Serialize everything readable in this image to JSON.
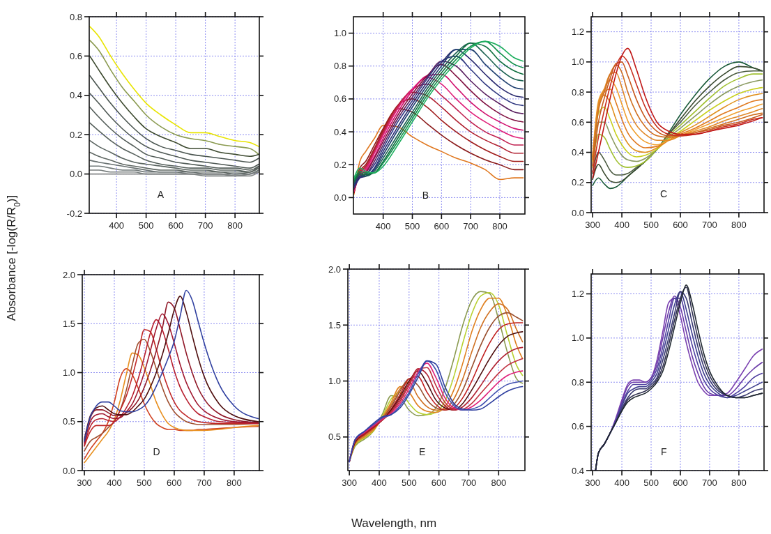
{
  "chart_data": [
    {
      "type": "line",
      "ylabel": "Absorbance [-log(R/R$_{0}$)]",
      "annotations": [
        "A"
      ],
      "xlim": [
        308,
        882
      ],
      "xticks": [
        400,
        500,
        600,
        700,
        800
      ],
      "ylim": [
        -0.2,
        0.8
      ],
      "yticks": [
        -0.2,
        {
          "value": 0,
          "label": "0.0"
        },
        0.2,
        0.4,
        0.6,
        0.8
      ],
      "grid": true,
      "x": [
        310,
        340,
        380,
        420,
        460,
        500,
        550,
        600,
        650,
        700,
        750,
        800,
        850,
        880
      ],
      "series": [
        {
          "color": "#e8e400",
          "values": [
            0.75,
            0.7,
            0.6,
            0.51,
            0.43,
            0.36,
            0.3,
            0.25,
            0.21,
            0.21,
            0.19,
            0.17,
            0.16,
            0.14
          ]
        },
        {
          "color": "#8a9a50",
          "values": [
            0.68,
            0.63,
            0.53,
            0.44,
            0.37,
            0.3,
            0.24,
            0.2,
            0.18,
            0.17,
            0.15,
            0.14,
            0.13,
            0.1
          ]
        },
        {
          "color": "#3d4a30",
          "values": [
            0.6,
            0.53,
            0.44,
            0.36,
            0.29,
            0.23,
            0.19,
            0.16,
            0.13,
            0.13,
            0.11,
            0.1,
            0.09,
            0.1
          ]
        },
        {
          "color": "#4a5550",
          "values": [
            0.5,
            0.44,
            0.36,
            0.29,
            0.23,
            0.18,
            0.14,
            0.12,
            0.1,
            0.09,
            0.08,
            0.07,
            0.06,
            0.08
          ]
        },
        {
          "color": "#4e5854",
          "values": [
            0.41,
            0.36,
            0.29,
            0.23,
            0.18,
            0.14,
            0.11,
            0.09,
            0.07,
            0.06,
            0.05,
            0.04,
            0.03,
            0.05
          ]
        },
        {
          "color": "#525c58",
          "values": [
            0.34,
            0.29,
            0.23,
            0.18,
            0.14,
            0.1,
            0.08,
            0.06,
            0.05,
            0.04,
            0.03,
            0.03,
            0.02,
            0.04
          ]
        },
        {
          "color": "#56605c",
          "values": [
            0.26,
            0.22,
            0.17,
            0.13,
            0.1,
            0.07,
            0.05,
            0.04,
            0.03,
            0.03,
            0.02,
            0.02,
            0.01,
            0.04
          ]
        },
        {
          "color": "#5a6460",
          "values": [
            0.17,
            0.14,
            0.11,
            0.08,
            0.06,
            0.05,
            0.04,
            0.03,
            0.02,
            0.02,
            0.01,
            0.01,
            0.01,
            0.03
          ]
        },
        {
          "color": "#606864",
          "values": [
            0.11,
            0.09,
            0.07,
            0.05,
            0.04,
            0.03,
            0.02,
            0.02,
            0.01,
            0.01,
            0.01,
            0.0,
            0.01,
            0.03
          ]
        },
        {
          "color": "#687070",
          "values": [
            0.07,
            0.06,
            0.05,
            0.04,
            0.03,
            0.02,
            0.01,
            0.01,
            0.01,
            0.0,
            0.0,
            0.0,
            0.0,
            0.02
          ]
        },
        {
          "color": "#707878",
          "values": [
            0.04,
            0.04,
            0.03,
            0.02,
            0.02,
            0.01,
            0.01,
            0.01,
            0.0,
            0.0,
            0.0,
            -0.01,
            0.0,
            0.02
          ]
        },
        {
          "color": "#787e7e",
          "values": [
            0.02,
            0.02,
            0.01,
            0.01,
            0.01,
            0.0,
            0.0,
            0.0,
            0.0,
            -0.01,
            -0.01,
            -0.01,
            0.0,
            0.01
          ]
        },
        {
          "color": "#858888",
          "values": [
            0.0,
            0.0,
            0.0,
            0.0,
            0.0,
            0.0,
            0.0,
            0.0,
            0.0,
            0.0,
            0.0,
            -0.01,
            -0.01,
            0.01
          ]
        }
      ]
    },
    {
      "type": "line",
      "annotations": [
        "B"
      ],
      "xlim": [
        298,
        886
      ],
      "xticks": [
        400,
        500,
        600,
        700,
        800
      ],
      "ylim": [
        -0.1,
        1.1
      ],
      "yticks": [
        {
          "value": 0,
          "label": "0.0"
        },
        0.2,
        0.4,
        0.6,
        0.8,
        {
          "value": 1,
          "label": "1.0"
        }
      ],
      "grid": true,
      "x": [
        300,
        320,
        340,
        370,
        400,
        450,
        500,
        550,
        600,
        650,
        700,
        750,
        800,
        850,
        880
      ],
      "series": [
        {
          "color": "#e07820",
          "values": [
            0.02,
            0.22,
            0.28,
            0.36,
            0.44,
            0.43,
            0.37,
            0.32,
            0.28,
            0.24,
            0.21,
            0.17,
            0.11,
            0.12,
            0.12
          ]
        },
        {
          "color": "#8b1a1a",
          "values": [
            0.03,
            0.18,
            0.22,
            0.32,
            0.42,
            0.54,
            0.52,
            0.45,
            0.38,
            0.32,
            0.27,
            0.23,
            0.2,
            0.17,
            0.17
          ]
        },
        {
          "color": "#a01c1c",
          "values": [
            0.03,
            0.16,
            0.2,
            0.3,
            0.41,
            0.56,
            0.6,
            0.55,
            0.47,
            0.4,
            0.34,
            0.29,
            0.25,
            0.22,
            0.22
          ]
        },
        {
          "color": "#b02030",
          "values": [
            0.03,
            0.15,
            0.19,
            0.29,
            0.4,
            0.56,
            0.64,
            0.62,
            0.55,
            0.47,
            0.4,
            0.35,
            0.31,
            0.27,
            0.27
          ]
        },
        {
          "color": "#c02050",
          "values": [
            0.04,
            0.15,
            0.18,
            0.28,
            0.39,
            0.55,
            0.66,
            0.69,
            0.62,
            0.54,
            0.46,
            0.4,
            0.36,
            0.32,
            0.32
          ]
        },
        {
          "color": "#e0207a",
          "values": [
            0.04,
            0.14,
            0.17,
            0.27,
            0.38,
            0.54,
            0.66,
            0.73,
            0.69,
            0.6,
            0.52,
            0.46,
            0.41,
            0.37,
            0.36
          ]
        },
        {
          "color": "#d0106e",
          "values": [
            0.05,
            0.14,
            0.16,
            0.25,
            0.36,
            0.52,
            0.65,
            0.74,
            0.75,
            0.67,
            0.58,
            0.51,
            0.46,
            0.42,
            0.41
          ]
        },
        {
          "color": "#801040",
          "values": [
            0.05,
            0.13,
            0.15,
            0.24,
            0.34,
            0.5,
            0.63,
            0.74,
            0.81,
            0.74,
            0.65,
            0.57,
            0.51,
            0.47,
            0.46
          ]
        },
        {
          "color": "#5a2060",
          "values": [
            0.06,
            0.13,
            0.14,
            0.22,
            0.32,
            0.48,
            0.61,
            0.73,
            0.83,
            0.8,
            0.71,
            0.63,
            0.57,
            0.52,
            0.51
          ]
        },
        {
          "color": "#303880",
          "values": [
            0.06,
            0.12,
            0.14,
            0.2,
            0.3,
            0.46,
            0.59,
            0.72,
            0.83,
            0.86,
            0.78,
            0.69,
            0.62,
            0.57,
            0.56
          ]
        },
        {
          "color": "#2a2a70",
          "values": [
            0.07,
            0.12,
            0.13,
            0.18,
            0.28,
            0.43,
            0.57,
            0.7,
            0.82,
            0.9,
            0.84,
            0.75,
            0.67,
            0.62,
            0.61
          ]
        },
        {
          "color": "#204070",
          "values": [
            0.08,
            0.13,
            0.13,
            0.17,
            0.26,
            0.41,
            0.55,
            0.68,
            0.8,
            0.9,
            0.9,
            0.81,
            0.73,
            0.67,
            0.66
          ]
        },
        {
          "color": "#1a6050",
          "values": [
            0.09,
            0.14,
            0.13,
            0.16,
            0.24,
            0.38,
            0.52,
            0.66,
            0.78,
            0.88,
            0.94,
            0.87,
            0.78,
            0.72,
            0.71
          ]
        },
        {
          "color": "#107040",
          "values": [
            0.1,
            0.15,
            0.14,
            0.15,
            0.22,
            0.36,
            0.5,
            0.64,
            0.76,
            0.86,
            0.94,
            0.92,
            0.83,
            0.77,
            0.75
          ]
        },
        {
          "color": "#10904a",
          "values": [
            0.11,
            0.16,
            0.15,
            0.15,
            0.21,
            0.34,
            0.48,
            0.62,
            0.74,
            0.84,
            0.92,
            0.95,
            0.88,
            0.81,
            0.79
          ]
        },
        {
          "color": "#20b060",
          "values": [
            0.12,
            0.18,
            0.16,
            0.15,
            0.19,
            0.32,
            0.46,
            0.6,
            0.72,
            0.82,
            0.91,
            0.95,
            0.92,
            0.85,
            0.83
          ]
        }
      ]
    },
    {
      "type": "line",
      "annotations": [
        "C"
      ],
      "xlim": [
        295,
        886
      ],
      "xticks": [
        300,
        400,
        500,
        600,
        700,
        800
      ],
      "ylim": [
        0.0,
        1.3
      ],
      "yticks": [
        {
          "value": 0,
          "label": "0.0"
        },
        0.2,
        0.4,
        0.6,
        0.8,
        {
          "value": 1,
          "label": "1.0"
        },
        1.2
      ],
      "grid": true,
      "x": [
        300,
        320,
        340,
        360,
        380,
        400,
        420,
        450,
        480,
        520,
        560,
        600,
        650,
        700,
        750,
        800,
        850,
        880
      ],
      "series": [
        {
          "color": "#1a5a3a",
          "values": [
            0.18,
            0.23,
            0.19,
            0.16,
            0.17,
            0.2,
            0.24,
            0.29,
            0.34,
            0.42,
            0.53,
            0.65,
            0.78,
            0.89,
            0.97,
            1.0,
            0.96,
            0.94
          ]
        },
        {
          "color": "#3a4a30",
          "values": [
            0.22,
            0.32,
            0.26,
            0.21,
            0.2,
            0.21,
            0.24,
            0.29,
            0.34,
            0.42,
            0.52,
            0.62,
            0.74,
            0.84,
            0.92,
            0.97,
            0.96,
            0.94
          ]
        },
        {
          "color": "#4a5a40",
          "values": [
            0.26,
            0.4,
            0.35,
            0.28,
            0.25,
            0.25,
            0.26,
            0.3,
            0.34,
            0.42,
            0.52,
            0.6,
            0.71,
            0.8,
            0.88,
            0.93,
            0.94,
            0.94
          ]
        },
        {
          "color": "#a0c030",
          "values": [
            0.3,
            0.52,
            0.5,
            0.42,
            0.35,
            0.31,
            0.3,
            0.31,
            0.34,
            0.42,
            0.51,
            0.58,
            0.67,
            0.76,
            0.84,
            0.89,
            0.92,
            0.92
          ]
        },
        {
          "color": "#8a9a60",
          "values": [
            0.32,
            0.6,
            0.6,
            0.52,
            0.44,
            0.38,
            0.35,
            0.34,
            0.36,
            0.42,
            0.5,
            0.56,
            0.64,
            0.72,
            0.79,
            0.84,
            0.87,
            0.88
          ]
        },
        {
          "color": "#c8d020",
          "values": [
            0.34,
            0.66,
            0.7,
            0.62,
            0.52,
            0.45,
            0.4,
            0.37,
            0.38,
            0.42,
            0.49,
            0.54,
            0.61,
            0.68,
            0.74,
            0.79,
            0.82,
            0.83
          ]
        },
        {
          "color": "#e09020",
          "values": [
            0.36,
            0.7,
            0.78,
            0.73,
            0.62,
            0.53,
            0.46,
            0.41,
            0.4,
            0.43,
            0.48,
            0.53,
            0.58,
            0.64,
            0.7,
            0.75,
            0.78,
            0.79
          ]
        },
        {
          "color": "#e07a20",
          "values": [
            0.37,
            0.72,
            0.8,
            0.82,
            0.73,
            0.62,
            0.53,
            0.46,
            0.43,
            0.44,
            0.48,
            0.52,
            0.56,
            0.61,
            0.66,
            0.7,
            0.74,
            0.75
          ]
        },
        {
          "color": "#f0a030",
          "values": [
            0.38,
            0.74,
            0.82,
            0.88,
            0.83,
            0.72,
            0.61,
            0.52,
            0.47,
            0.45,
            0.48,
            0.51,
            0.55,
            0.59,
            0.63,
            0.67,
            0.7,
            0.72
          ]
        },
        {
          "color": "#e08828",
          "values": [
            0.37,
            0.72,
            0.82,
            0.92,
            0.93,
            0.83,
            0.7,
            0.58,
            0.52,
            0.48,
            0.48,
            0.51,
            0.54,
            0.57,
            0.61,
            0.64,
            0.67,
            0.69
          ]
        },
        {
          "color": "#d07020",
          "values": [
            0.35,
            0.68,
            0.8,
            0.92,
            0.98,
            0.93,
            0.8,
            0.66,
            0.57,
            0.51,
            0.5,
            0.51,
            0.53,
            0.56,
            0.59,
            0.62,
            0.65,
            0.66
          ]
        },
        {
          "color": "#c85a20",
          "values": [
            0.31,
            0.6,
            0.76,
            0.89,
            0.99,
            1.0,
            0.91,
            0.75,
            0.63,
            0.54,
            0.51,
            0.51,
            0.53,
            0.55,
            0.58,
            0.6,
            0.63,
            0.65
          ]
        },
        {
          "color": "#c83020",
          "values": [
            0.27,
            0.5,
            0.68,
            0.84,
            0.97,
            1.04,
            1.0,
            0.85,
            0.7,
            0.57,
            0.52,
            0.51,
            0.52,
            0.54,
            0.57,
            0.59,
            0.62,
            0.63
          ]
        },
        {
          "color": "#c01818",
          "values": [
            0.23,
            0.4,
            0.58,
            0.76,
            0.92,
            1.04,
            1.09,
            0.95,
            0.77,
            0.6,
            0.54,
            0.52,
            0.52,
            0.54,
            0.56,
            0.58,
            0.61,
            0.63
          ]
        }
      ]
    },
    {
      "type": "line",
      "annotations": [
        "D"
      ],
      "xlim": [
        293,
        884
      ],
      "xticks": [
        300,
        400,
        500,
        600,
        700,
        800
      ],
      "ylim": [
        0.0,
        2.0
      ],
      "yticks": [
        {
          "value": 0,
          "label": "0.0"
        },
        0.5,
        {
          "value": 1,
          "label": "1.0"
        },
        1.5,
        {
          "value": 2,
          "label": "2.0"
        }
      ],
      "grid": true,
      "x": [
        300,
        320,
        340,
        360,
        380,
        400,
        420,
        440,
        460,
        480,
        500,
        520,
        540,
        560,
        580,
        600,
        620,
        640,
        660,
        680,
        700,
        750,
        800,
        880
      ],
      "series": [
        {
          "color": "#d04020",
          "values": [
            0.12,
            0.22,
            0.3,
            0.38,
            0.5,
            0.7,
            0.95,
            1.04,
            0.98,
            0.84,
            0.68,
            0.56,
            0.48,
            0.44,
            0.42,
            0.42,
            0.41,
            0.41,
            0.41,
            0.42,
            0.42,
            0.43,
            0.44,
            0.45
          ]
        },
        {
          "color": "#e89020",
          "values": [
            0.08,
            0.16,
            0.24,
            0.32,
            0.4,
            0.52,
            0.72,
            0.98,
            1.2,
            1.18,
            1.05,
            0.88,
            0.7,
            0.57,
            0.48,
            0.44,
            0.42,
            0.41,
            0.41,
            0.41,
            0.41,
            0.42,
            0.44,
            0.46
          ]
        },
        {
          "color": "#a05030",
          "values": [
            0.2,
            0.3,
            0.34,
            0.38,
            0.44,
            0.5,
            0.62,
            0.82,
            1.08,
            1.3,
            1.34,
            1.22,
            1.04,
            0.85,
            0.7,
            0.6,
            0.54,
            0.5,
            0.48,
            0.47,
            0.47,
            0.47,
            0.47,
            0.48
          ]
        },
        {
          "color": "#c02828",
          "values": [
            0.25,
            0.4,
            0.46,
            0.46,
            0.46,
            0.5,
            0.62,
            0.76,
            0.96,
            1.2,
            1.44,
            1.42,
            1.24,
            1.02,
            0.84,
            0.7,
            0.61,
            0.56,
            0.52,
            0.5,
            0.49,
            0.48,
            0.48,
            0.48
          ]
        },
        {
          "color": "#b82030",
          "values": [
            0.26,
            0.45,
            0.52,
            0.53,
            0.51,
            0.5,
            0.55,
            0.64,
            0.76,
            0.94,
            1.16,
            1.4,
            1.54,
            1.44,
            1.24,
            1.02,
            0.85,
            0.73,
            0.64,
            0.58,
            0.55,
            0.5,
            0.49,
            0.48
          ]
        },
        {
          "color": "#a01830",
          "values": [
            0.28,
            0.5,
            0.57,
            0.58,
            0.55,
            0.53,
            0.54,
            0.6,
            0.68,
            0.82,
            1.0,
            1.22,
            1.45,
            1.6,
            1.5,
            1.3,
            1.08,
            0.9,
            0.77,
            0.67,
            0.61,
            0.53,
            0.5,
            0.49
          ]
        },
        {
          "color": "#901828",
          "values": [
            0.3,
            0.54,
            0.62,
            0.62,
            0.59,
            0.56,
            0.56,
            0.59,
            0.64,
            0.72,
            0.85,
            1.02,
            1.22,
            1.45,
            1.72,
            1.66,
            1.44,
            1.2,
            1.0,
            0.84,
            0.73,
            0.58,
            0.52,
            0.49
          ]
        },
        {
          "color": "#501010",
          "values": [
            0.32,
            0.56,
            0.64,
            0.66,
            0.62,
            0.58,
            0.57,
            0.57,
            0.6,
            0.66,
            0.73,
            0.85,
            1.0,
            1.18,
            1.4,
            1.64,
            1.78,
            1.62,
            1.38,
            1.15,
            0.96,
            0.68,
            0.56,
            0.5
          ]
        },
        {
          "color": "#3040a0",
          "values": [
            0.3,
            0.55,
            0.66,
            0.7,
            0.7,
            0.66,
            0.61,
            0.6,
            0.6,
            0.62,
            0.66,
            0.74,
            0.86,
            1.0,
            1.15,
            1.32,
            1.58,
            1.84,
            1.74,
            1.52,
            1.3,
            0.88,
            0.66,
            0.53
          ]
        }
      ]
    },
    {
      "type": "line",
      "xlabel": "Wavelength, nm",
      "annotations": [
        "E"
      ],
      "xlim": [
        295,
        888
      ],
      "xticks": [
        300,
        400,
        500,
        600,
        700,
        800
      ],
      "ylim": [
        0.2,
        2.0
      ],
      "yticks": [
        0.5,
        {
          "value": 1,
          "label": "1.0"
        },
        1.5,
        {
          "value": 2,
          "label": "2.0"
        }
      ],
      "grid": true,
      "x": [
        300,
        320,
        350,
        380,
        410,
        440,
        470,
        500,
        530,
        560,
        590,
        620,
        650,
        680,
        710,
        740,
        770,
        800,
        830,
        860,
        880
      ],
      "series": [
        {
          "color": "#8a9a50",
          "values": [
            0.28,
            0.42,
            0.48,
            0.55,
            0.7,
            0.87,
            0.85,
            0.74,
            0.69,
            0.7,
            0.76,
            0.93,
            1.2,
            1.5,
            1.72,
            1.8,
            1.78,
            1.55,
            1.25,
            1.02,
            0.98
          ]
        },
        {
          "color": "#b8d030",
          "values": [
            0.28,
            0.43,
            0.49,
            0.55,
            0.68,
            0.84,
            0.9,
            0.8,
            0.72,
            0.7,
            0.72,
            0.82,
            1.04,
            1.34,
            1.6,
            1.76,
            1.79,
            1.68,
            1.4,
            1.14,
            1.05
          ]
        },
        {
          "color": "#e08020",
          "values": [
            0.28,
            0.44,
            0.5,
            0.56,
            0.67,
            0.81,
            0.95,
            0.9,
            0.78,
            0.73,
            0.72,
            0.77,
            0.92,
            1.16,
            1.44,
            1.64,
            1.74,
            1.74,
            1.58,
            1.32,
            1.2
          ]
        },
        {
          "color": "#d07020",
          "values": [
            0.28,
            0.45,
            0.51,
            0.57,
            0.66,
            0.79,
            0.93,
            0.99,
            0.86,
            0.77,
            0.74,
            0.75,
            0.84,
            1.02,
            1.26,
            1.48,
            1.62,
            1.69,
            1.64,
            1.46,
            1.35
          ]
        },
        {
          "color": "#9a5030",
          "values": [
            0.28,
            0.45,
            0.52,
            0.58,
            0.66,
            0.77,
            0.91,
            1.02,
            0.96,
            0.83,
            0.76,
            0.74,
            0.79,
            0.92,
            1.12,
            1.32,
            1.48,
            1.58,
            1.61,
            1.57,
            1.54
          ]
        },
        {
          "color": "#c02020",
          "values": [
            0.28,
            0.46,
            0.52,
            0.58,
            0.65,
            0.75,
            0.88,
            1.02,
            1.04,
            0.9,
            0.79,
            0.74,
            0.76,
            0.85,
            1.0,
            1.18,
            1.34,
            1.46,
            1.51,
            1.52,
            1.52
          ]
        },
        {
          "color": "#501010",
          "values": [
            0.28,
            0.46,
            0.53,
            0.59,
            0.65,
            0.74,
            0.86,
            1.0,
            1.09,
            0.98,
            0.83,
            0.76,
            0.74,
            0.8,
            0.92,
            1.06,
            1.2,
            1.32,
            1.4,
            1.43,
            1.44
          ]
        },
        {
          "color": "#b02030",
          "values": [
            0.28,
            0.47,
            0.53,
            0.59,
            0.65,
            0.73,
            0.84,
            0.98,
            1.11,
            1.06,
            0.89,
            0.78,
            0.74,
            0.77,
            0.85,
            0.96,
            1.08,
            1.18,
            1.25,
            1.29,
            1.3
          ]
        },
        {
          "color": "#c03040",
          "values": [
            0.28,
            0.47,
            0.54,
            0.6,
            0.65,
            0.72,
            0.82,
            0.96,
            1.1,
            1.12,
            0.96,
            0.81,
            0.75,
            0.75,
            0.8,
            0.89,
            0.98,
            1.07,
            1.14,
            1.18,
            1.2
          ]
        },
        {
          "color": "#e0207a",
          "values": [
            0.28,
            0.48,
            0.54,
            0.6,
            0.66,
            0.71,
            0.8,
            0.93,
            1.08,
            1.16,
            1.03,
            0.85,
            0.76,
            0.74,
            0.77,
            0.83,
            0.91,
            0.99,
            1.05,
            1.08,
            1.09
          ]
        },
        {
          "color": "#4050b0",
          "values": [
            0.28,
            0.48,
            0.55,
            0.61,
            0.67,
            0.7,
            0.78,
            0.9,
            1.06,
            1.18,
            1.1,
            0.9,
            0.78,
            0.74,
            0.75,
            0.78,
            0.85,
            0.92,
            0.97,
            0.99,
            1.0
          ]
        },
        {
          "color": "#3040a0",
          "values": [
            0.28,
            0.48,
            0.55,
            0.62,
            0.68,
            0.7,
            0.76,
            0.88,
            1.03,
            1.18,
            1.15,
            0.95,
            0.8,
            0.75,
            0.74,
            0.75,
            0.8,
            0.86,
            0.91,
            0.94,
            0.95
          ]
        }
      ]
    },
    {
      "type": "line",
      "annotations": [
        "F"
      ],
      "xlim": [
        295,
        886
      ],
      "xticks": [
        300,
        400,
        500,
        600,
        700,
        800
      ],
      "ylim": [
        0.4,
        1.29
      ],
      "yticks": [
        0.4,
        0.6,
        0.8,
        {
          "value": 1,
          "label": "1.0"
        },
        1.2
      ],
      "grid": true,
      "x": [
        310,
        320,
        340,
        360,
        380,
        400,
        420,
        440,
        460,
        480,
        500,
        520,
        540,
        560,
        580,
        600,
        620,
        640,
        660,
        680,
        700,
        730,
        760,
        790,
        820,
        850,
        880
      ],
      "series": [
        {
          "color": "#7a40b0",
          "values": [
            0.4,
            0.48,
            0.52,
            0.57,
            0.64,
            0.72,
            0.79,
            0.81,
            0.81,
            0.8,
            0.82,
            0.9,
            1.03,
            1.16,
            1.18,
            1.1,
            0.98,
            0.88,
            0.8,
            0.76,
            0.74,
            0.74,
            0.75,
            0.8,
            0.86,
            0.92,
            0.95
          ]
        },
        {
          "color": "#6a3aa8",
          "values": [
            0.4,
            0.48,
            0.52,
            0.57,
            0.63,
            0.71,
            0.78,
            0.8,
            0.8,
            0.8,
            0.82,
            0.88,
            1.0,
            1.12,
            1.19,
            1.14,
            1.03,
            0.92,
            0.84,
            0.78,
            0.75,
            0.74,
            0.74,
            0.77,
            0.82,
            0.86,
            0.89
          ]
        },
        {
          "color": "#5040a0",
          "values": [
            0.4,
            0.48,
            0.52,
            0.57,
            0.63,
            0.7,
            0.76,
            0.79,
            0.79,
            0.79,
            0.81,
            0.86,
            0.96,
            1.08,
            1.18,
            1.18,
            1.08,
            0.97,
            0.88,
            0.81,
            0.77,
            0.74,
            0.73,
            0.75,
            0.78,
            0.82,
            0.84
          ]
        },
        {
          "color": "#404090",
          "values": [
            0.4,
            0.48,
            0.52,
            0.57,
            0.62,
            0.69,
            0.75,
            0.77,
            0.78,
            0.78,
            0.8,
            0.84,
            0.93,
            1.04,
            1.15,
            1.21,
            1.13,
            1.02,
            0.92,
            0.84,
            0.79,
            0.75,
            0.73,
            0.74,
            0.76,
            0.78,
            0.8
          ]
        },
        {
          "color": "#383870",
          "values": [
            0.4,
            0.48,
            0.52,
            0.57,
            0.62,
            0.68,
            0.73,
            0.76,
            0.77,
            0.77,
            0.79,
            0.82,
            0.9,
            1.0,
            1.11,
            1.21,
            1.18,
            1.07,
            0.96,
            0.87,
            0.81,
            0.76,
            0.74,
            0.73,
            0.74,
            0.76,
            0.77
          ]
        },
        {
          "color": "#303050",
          "values": [
            0.4,
            0.48,
            0.52,
            0.57,
            0.62,
            0.67,
            0.72,
            0.74,
            0.75,
            0.76,
            0.78,
            0.81,
            0.87,
            0.97,
            1.08,
            1.18,
            1.23,
            1.12,
            1.0,
            0.9,
            0.83,
            0.77,
            0.74,
            0.73,
            0.73,
            0.74,
            0.75
          ]
        },
        {
          "color": "#202830",
          "values": [
            0.4,
            0.48,
            0.52,
            0.57,
            0.62,
            0.67,
            0.71,
            0.73,
            0.74,
            0.75,
            0.77,
            0.8,
            0.85,
            0.94,
            1.05,
            1.16,
            1.24,
            1.16,
            1.04,
            0.93,
            0.85,
            0.78,
            0.74,
            0.73,
            0.73,
            0.74,
            0.75
          ]
        }
      ]
    }
  ]
}
